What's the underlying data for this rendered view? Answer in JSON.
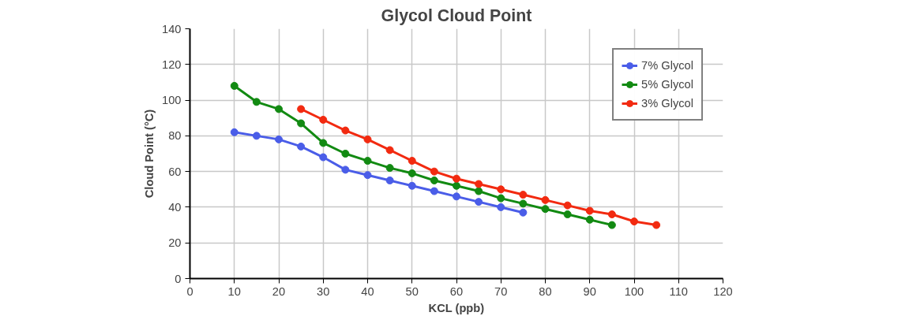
{
  "chart_data": {
    "type": "line",
    "title": "Glycol Cloud Point",
    "xlabel": "KCL (ppb)",
    "ylabel": "Cloud Point (°C)",
    "x": [
      10,
      15,
      20,
      25,
      30,
      35,
      40,
      45,
      50,
      55,
      60,
      65,
      70,
      75,
      80,
      85,
      90,
      95,
      100,
      105
    ],
    "series": [
      {
        "name": "7% Glycol",
        "color": "#4a5de8",
        "values": [
          82,
          80,
          78,
          74,
          68,
          61,
          58,
          55,
          52,
          49,
          46,
          43,
          40,
          37,
          null,
          null,
          null,
          null,
          null,
          null
        ]
      },
      {
        "name": "5% Glycol",
        "color": "#128a12",
        "values": [
          108,
          99,
          95,
          87,
          76,
          70,
          66,
          62,
          59,
          55,
          52,
          49,
          45,
          42,
          39,
          36,
          33,
          30,
          null,
          null
        ]
      },
      {
        "name": "3% Glycol",
        "color": "#f22a10",
        "values": [
          null,
          null,
          null,
          95,
          89,
          83,
          78,
          72,
          66,
          60,
          56,
          53,
          50,
          47,
          44,
          41,
          38,
          36,
          32,
          30
        ]
      }
    ],
    "xlim": [
      0,
      120
    ],
    "xticks": [
      0,
      10,
      20,
      30,
      40,
      50,
      60,
      70,
      80,
      90,
      100,
      110,
      120
    ],
    "ylim": [
      0,
      140
    ],
    "yticks": [
      0,
      20,
      40,
      60,
      80,
      100,
      120,
      140
    ],
    "grid": true,
    "legend": "top right",
    "marker": "circle",
    "line_style": "solid"
  }
}
